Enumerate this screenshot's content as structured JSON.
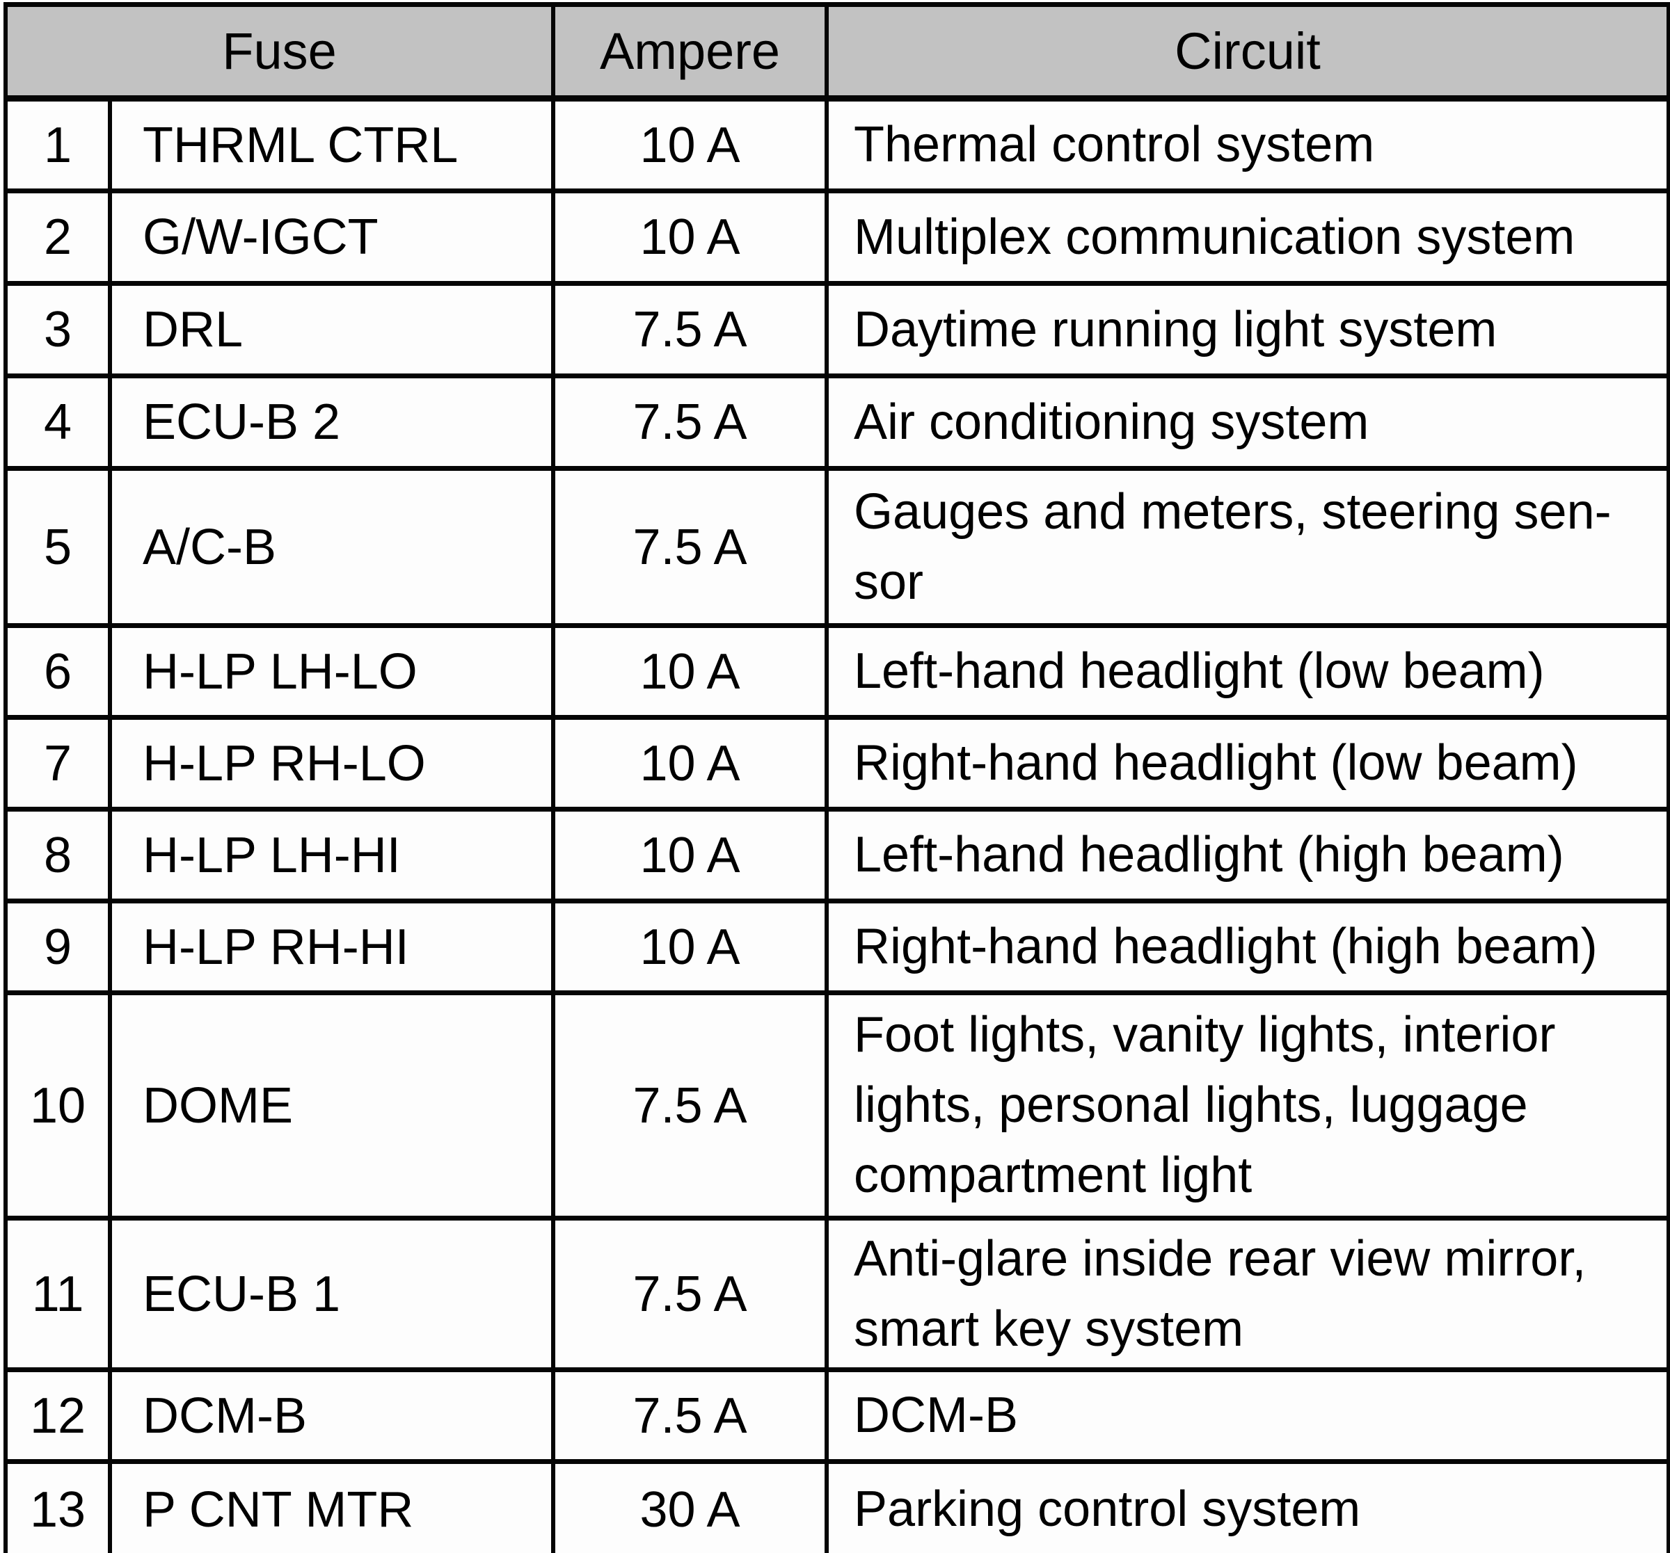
{
  "table": {
    "headers": {
      "fuse": "Fuse",
      "ampere": "Ampere",
      "circuit": "Circuit"
    },
    "rows": [
      {
        "num": "1",
        "fuse": "THRML CTRL",
        "ampere": "10 A",
        "circuit": "Thermal control system"
      },
      {
        "num": "2",
        "fuse": "G/W-IGCT",
        "ampere": "10 A",
        "circuit": "Multiplex communication system"
      },
      {
        "num": "3",
        "fuse": "DRL",
        "ampere": "7.5 A",
        "circuit": "Daytime running light system"
      },
      {
        "num": "4",
        "fuse": "ECU-B 2",
        "ampere": "7.5 A",
        "circuit": "Air conditioning system"
      },
      {
        "num": "5",
        "fuse": "A/C-B",
        "ampere": "7.5 A",
        "circuit": "Gauges and meters, steering sen-\nsor"
      },
      {
        "num": "6",
        "fuse": "H-LP LH-LO",
        "ampere": "10 A",
        "circuit": "Left-hand headlight (low beam)"
      },
      {
        "num": "7",
        "fuse": "H-LP RH-LO",
        "ampere": "10 A",
        "circuit": "Right-hand headlight (low beam)"
      },
      {
        "num": "8",
        "fuse": "H-LP LH-HI",
        "ampere": "10 A",
        "circuit": "Left-hand headlight (high beam)"
      },
      {
        "num": "9",
        "fuse": "H-LP RH-HI",
        "ampere": "10 A",
        "circuit": "Right-hand headlight (high beam)"
      },
      {
        "num": "10",
        "fuse": "DOME",
        "ampere": "7.5 A",
        "circuit": "Foot lights, vanity lights, interior\nlights, personal lights, luggage\ncompartment light"
      },
      {
        "num": "11",
        "fuse": "ECU-B 1",
        "ampere": "7.5 A",
        "circuit": "Anti-glare inside rear view mirror,\nsmart key system"
      },
      {
        "num": "12",
        "fuse": "DCM-B",
        "ampere": "7.5 A",
        "circuit": "DCM-B"
      },
      {
        "num": "13",
        "fuse": "P CNT MTR",
        "ampere": "30 A",
        "circuit": "Parking control system"
      }
    ],
    "colors": {
      "header_bg": "#c2c2c2",
      "border": "#050505",
      "cell_bg": "#fdfdfd",
      "text": "#000000"
    }
  }
}
